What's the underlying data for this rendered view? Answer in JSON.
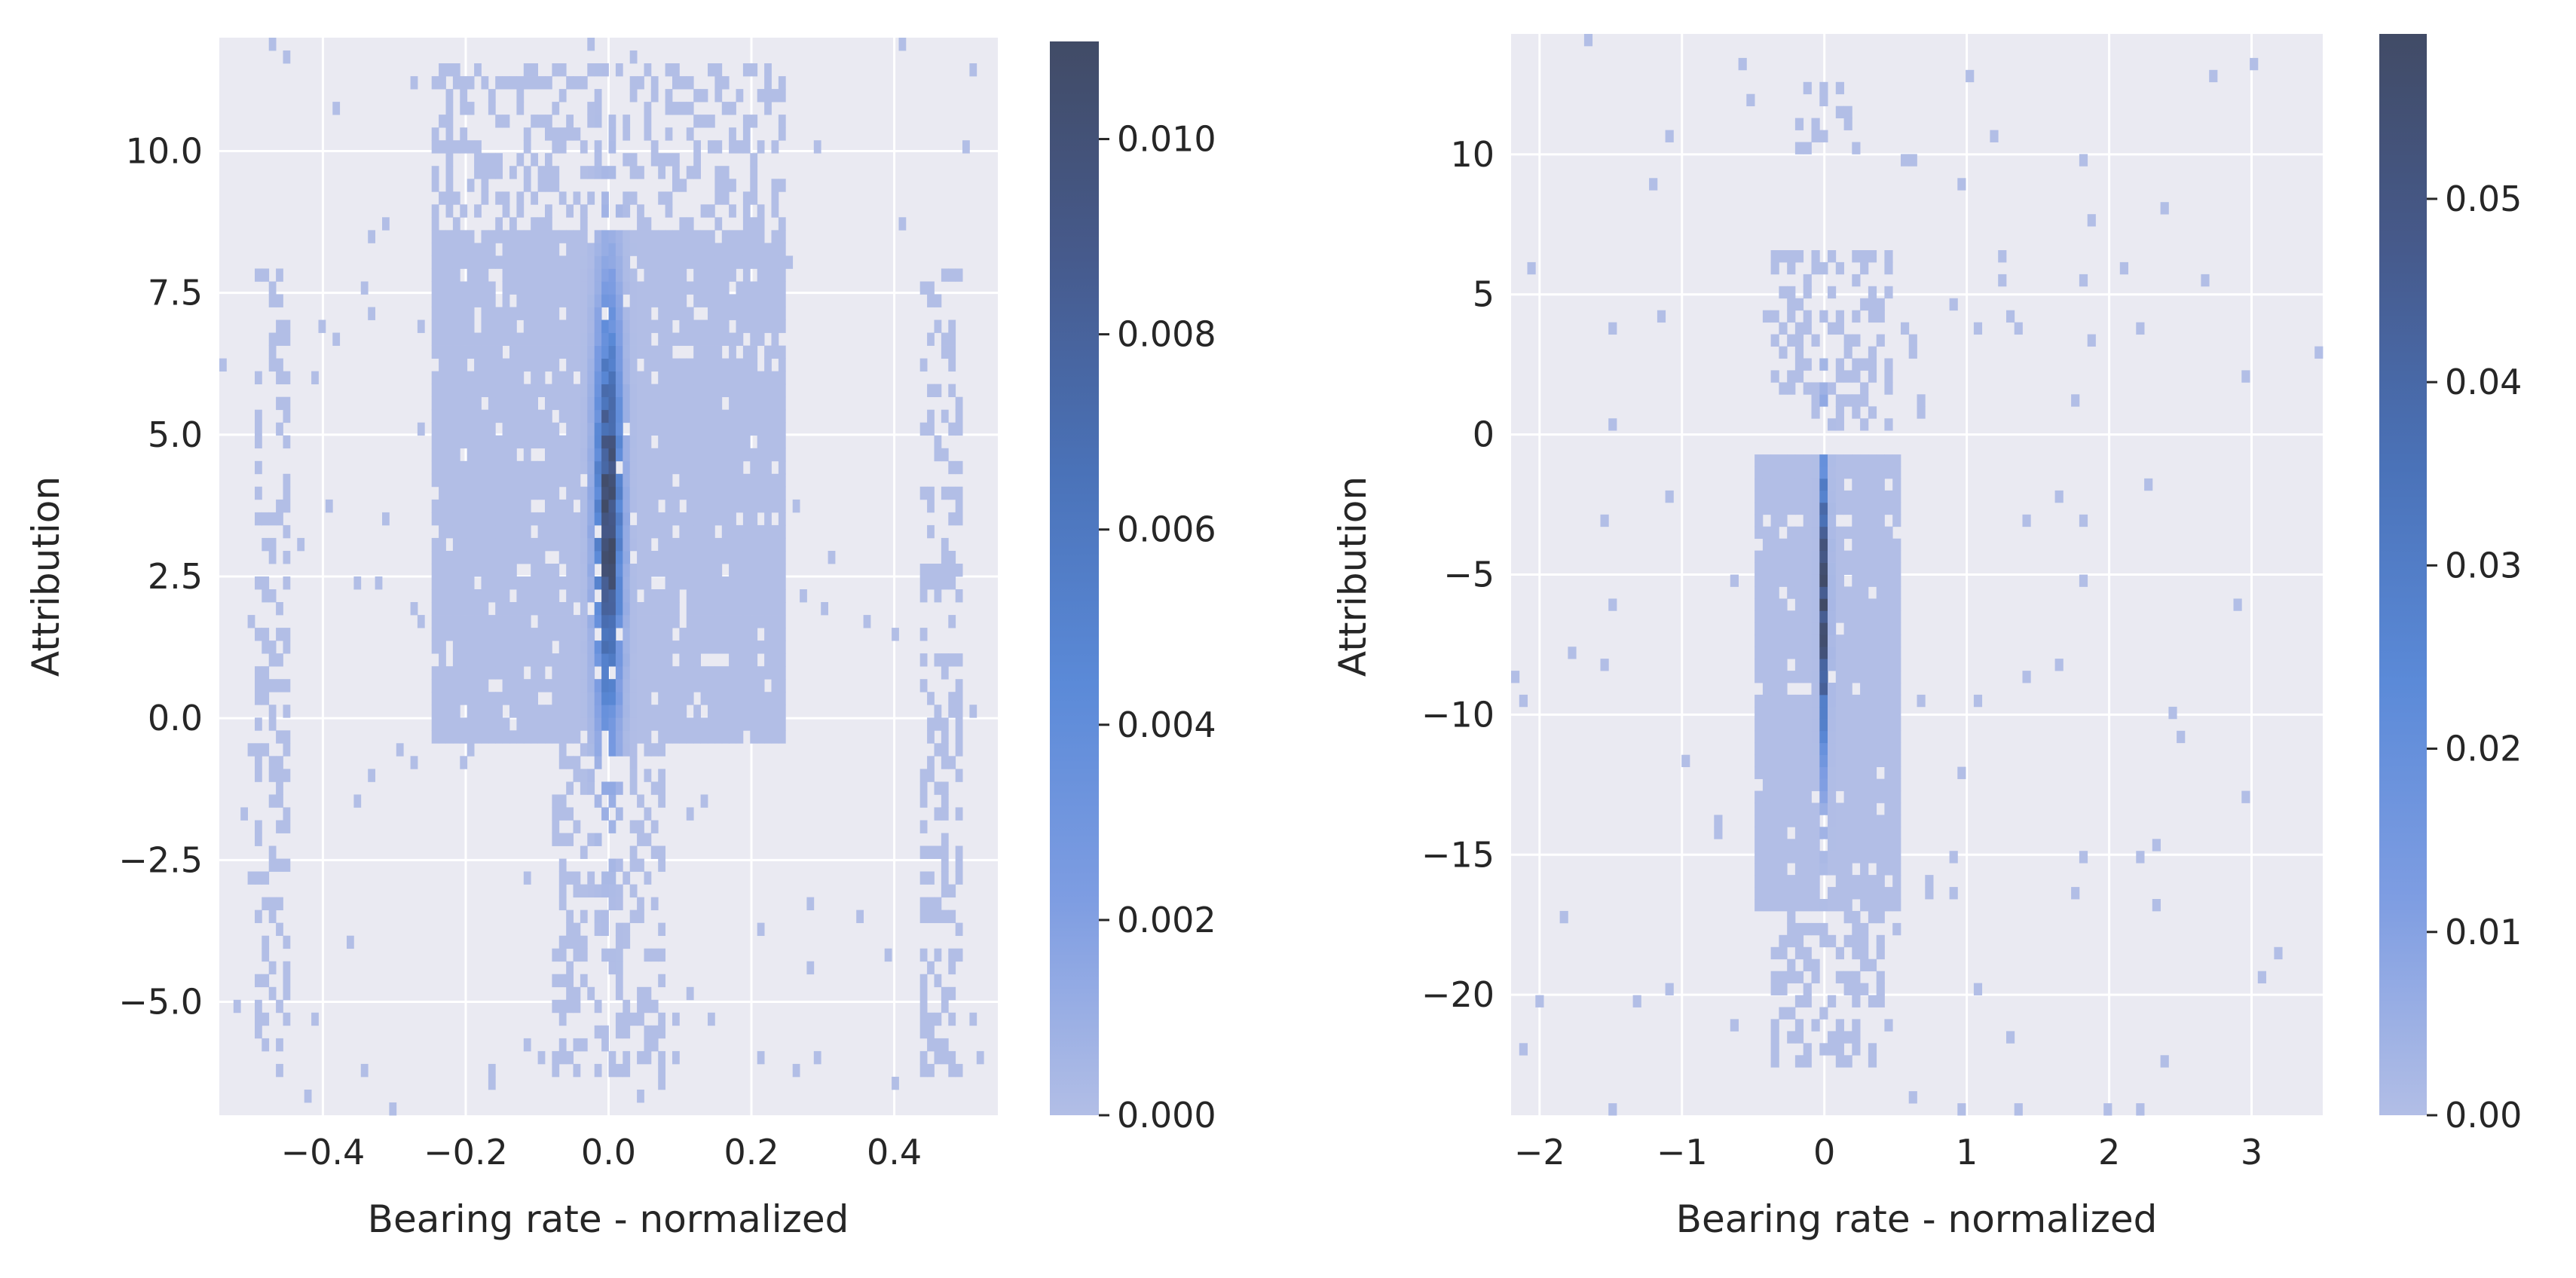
{
  "figure": {
    "background": "#ffffff",
    "plot_background": "#eaeaf2",
    "grid_color": "#ffffff"
  },
  "chart_data": [
    {
      "type": "heatmap",
      "title": "",
      "xlabel": "Bearing rate - normalized",
      "ylabel": "Attribution",
      "xlim": [
        -0.545,
        0.545
      ],
      "ylim": [
        -7.0,
        12.0
      ],
      "xticks": [
        -0.4,
        -0.2,
        0.0,
        0.2,
        0.4
      ],
      "xtick_labels": [
        "−0.4",
        "−0.2",
        "0.0",
        "0.2",
        "0.4"
      ],
      "yticks": [
        -5.0,
        -2.5,
        0.0,
        2.5,
        5.0,
        7.5,
        10.0
      ],
      "ytick_labels": [
        "−5.0",
        "−2.5",
        "0.0",
        "2.5",
        "5.0",
        "7.5",
        "10.0"
      ],
      "colorbar": {
        "min": 0.0,
        "max": 0.011,
        "ticks": [
          0.0,
          0.002,
          0.004,
          0.006,
          0.008,
          0.01
        ],
        "tick_labels": [
          "0.000",
          "0.002",
          "0.004",
          "0.006",
          "0.008",
          "0.010"
        ],
        "colors": [
          "#b2bee6",
          "#7e9de2",
          "#5b8ad8",
          "#4a72b8",
          "#465a8c",
          "#414b66"
        ]
      },
      "density_model": {
        "bins_x": 110,
        "bins_y": 84,
        "core": {
          "x_range": [
            -0.25,
            0.25
          ],
          "y_range": [
            -0.5,
            8.5
          ]
        },
        "ridge": {
          "x": 0.0,
          "x_sigma": 0.012,
          "y_peak": 3.5,
          "y_sigma": 2.4,
          "peak_density": 0.011
        },
        "bands": [
          {
            "x_range": [
              -0.5,
              -0.45
            ],
            "y_range": [
              -6.3,
              8.0
            ]
          },
          {
            "x_range": [
              0.44,
              0.5
            ],
            "y_range": [
              -6.3,
              8.0
            ]
          },
          {
            "x_range": [
              -0.25,
              0.25
            ],
            "y_range": [
              8.5,
              11.5
            ]
          },
          {
            "x_range": [
              -0.08,
              0.08
            ],
            "y_range": [
              -6.3,
              -0.5
            ]
          }
        ]
      }
    },
    {
      "type": "heatmap",
      "title": "",
      "xlabel": "Bearing rate - normalized",
      "ylabel": "Attribution",
      "xlim": [
        -2.2,
        3.5
      ],
      "ylim": [
        -24.3,
        14.3
      ],
      "xticks": [
        -2,
        -1,
        0,
        1,
        2,
        3
      ],
      "xtick_labels": [
        "−2",
        "−1",
        "0",
        "1",
        "2",
        "3"
      ],
      "yticks": [
        -20,
        -15,
        -10,
        -5,
        0,
        5,
        10
      ],
      "ytick_labels": [
        "−20",
        "−15",
        "−10",
        "−5",
        "0",
        "5",
        "10"
      ],
      "colorbar": {
        "min": 0.0,
        "max": 0.059,
        "ticks": [
          0.0,
          0.01,
          0.02,
          0.03,
          0.04,
          0.05
        ],
        "tick_labels": [
          "0.00",
          "0.01",
          "0.02",
          "0.03",
          "0.04",
          "0.05"
        ],
        "colors": [
          "#b2bee6",
          "#7e9de2",
          "#5b8ad8",
          "#4a72b8",
          "#465a8c",
          "#414b66"
        ]
      },
      "density_model": {
        "bins_x": 100,
        "bins_y": 90,
        "core": {
          "x_range": [
            -0.5,
            0.55
          ],
          "y_range": [
            -17.0,
            -0.5
          ]
        },
        "ridge": {
          "x": 0.0,
          "x_sigma": 0.02,
          "y_peak": -6.0,
          "y_sigma": 3.5,
          "peak_density": 0.059
        },
        "bands": [
          {
            "x_range": [
              -0.4,
              0.4
            ],
            "y_range": [
              -22.5,
              -17.0
            ]
          },
          {
            "x_range": [
              -0.4,
              0.5
            ],
            "y_range": [
              0.0,
              6.5
            ]
          },
          {
            "x_range": [
              -0.2,
              0.2
            ],
            "y_range": [
              10.5,
              12.5
            ]
          }
        ]
      }
    }
  ]
}
